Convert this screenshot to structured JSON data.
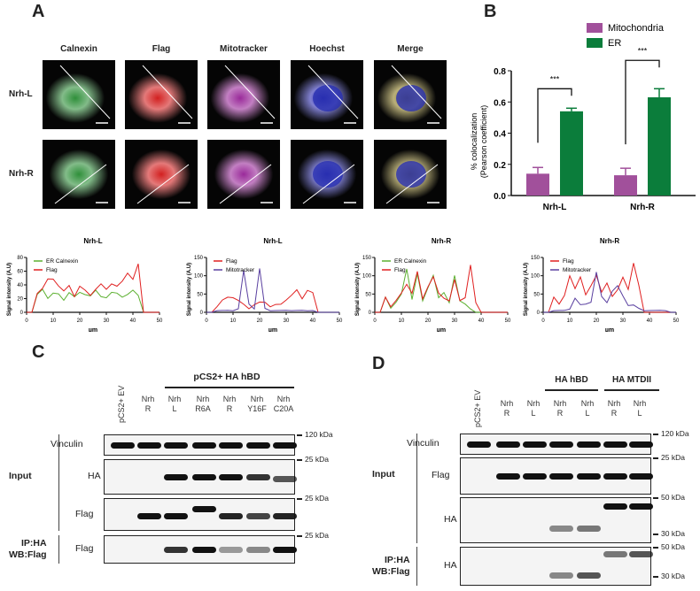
{
  "panels": {
    "a": "A",
    "b": "B",
    "c": "C",
    "d": "D"
  },
  "panel_a": {
    "columns": [
      "Calnexin",
      "Flag",
      "Mitotracker",
      "Hoechst",
      "Merge"
    ],
    "rows": [
      "Nrh-L",
      "Nrh-R"
    ],
    "channel_colors": [
      "#2f8f3a",
      "#d22020",
      "#9a2a9a",
      "#2a2ab0",
      "#8a7a20"
    ]
  },
  "chart_data": [
    {
      "type": "bar",
      "title": "",
      "ylabel": "% colocalization\n(Pearson coefficient)",
      "ylabel_lines": [
        "% colocalization",
        "(Pearson coefficient)"
      ],
      "categories": [
        "Nrh-L",
        "Nrh-R"
      ],
      "ylim": [
        0,
        0.8
      ],
      "yticks": [
        "0.0",
        "0.2",
        "0.4",
        "0.6",
        "0.8"
      ],
      "series": [
        {
          "name": "Mitochondria",
          "color": "#a1509b",
          "values": [
            0.14,
            0.13
          ],
          "errors": [
            0.04,
            0.045
          ]
        },
        {
          "name": "ER",
          "color": "#0b7d3b",
          "values": [
            0.54,
            0.63
          ],
          "errors": [
            0.02,
            0.055
          ]
        }
      ],
      "annotations": [
        "***",
        "***"
      ],
      "legend": "top-right"
    },
    {
      "type": "line",
      "title": "Nrh-L",
      "xlabel": "µm",
      "ylabel": "Signal intensity (A.U)",
      "xlim": [
        0,
        50
      ],
      "ylim": [
        0,
        80
      ],
      "xticks": [
        0,
        10,
        20,
        30,
        40,
        50
      ],
      "yticks": [
        0,
        20,
        40,
        60,
        80
      ],
      "series": [
        {
          "name": "ER Calnexin",
          "color": "#5cb030",
          "values": [
            0,
            0,
            25,
            30,
            22,
            28,
            25,
            20,
            30,
            22,
            26,
            28,
            24,
            30,
            26,
            22,
            28,
            25,
            24,
            26,
            30,
            28,
            0,
            0,
            0,
            0
          ]
        },
        {
          "name": "Flag",
          "color": "#e02020",
          "values": [
            0,
            0,
            30,
            35,
            45,
            55,
            40,
            30,
            35,
            25,
            38,
            30,
            28,
            35,
            40,
            30,
            45,
            38,
            42,
            65,
            50,
            68,
            0,
            0,
            0,
            0
          ]
        }
      ]
    },
    {
      "type": "line",
      "title": "Nrh-L",
      "xlabel": "µm",
      "ylabel": "Signal intensity (A.U)",
      "xlim": [
        0,
        50
      ],
      "ylim": [
        0,
        150
      ],
      "xticks": [
        0,
        10,
        20,
        30,
        40,
        50
      ],
      "yticks": [
        0,
        50,
        100,
        150
      ],
      "series": [
        {
          "name": "Flag",
          "color": "#e02020",
          "values": [
            0,
            0,
            15,
            30,
            45,
            40,
            30,
            25,
            10,
            20,
            25,
            30,
            15,
            20,
            25,
            35,
            45,
            55,
            40,
            60,
            50,
            0,
            0,
            0,
            0,
            0
          ]
        },
        {
          "name": "Mitotracker",
          "color": "#5a40a0",
          "values": [
            0,
            0,
            5,
            5,
            5,
            5,
            10,
            110,
            20,
            10,
            120,
            10,
            5,
            5,
            5,
            5,
            5,
            5,
            5,
            5,
            5,
            0,
            0,
            0,
            0,
            0
          ]
        }
      ]
    },
    {
      "type": "line",
      "title": "Nrh-R",
      "xlabel": "µm",
      "ylabel": "Signal intensity (A.U)",
      "xlim": [
        0,
        50
      ],
      "ylim": [
        0,
        150
      ],
      "xticks": [
        0,
        10,
        20,
        30,
        40,
        50
      ],
      "yticks": [
        0,
        50,
        100,
        150
      ],
      "series": [
        {
          "name": "ER Calnexin",
          "color": "#5cb030",
          "values": [
            0,
            0,
            40,
            10,
            30,
            50,
            110,
            40,
            110,
            30,
            60,
            110,
            40,
            50,
            30,
            105,
            30,
            20,
            10,
            0,
            0,
            0,
            0,
            0,
            0,
            0
          ]
        },
        {
          "name": "Flag",
          "color": "#e02020",
          "values": [
            0,
            0,
            45,
            15,
            30,
            60,
            80,
            50,
            100,
            40,
            70,
            90,
            60,
            40,
            30,
            80,
            35,
            40,
            120,
            30,
            0,
            0,
            0,
            0,
            0,
            0
          ]
        }
      ]
    },
    {
      "type": "line",
      "title": "Nrh-R",
      "xlabel": "µm",
      "ylabel": "Signal intensity (A.U)",
      "xlim": [
        0,
        50
      ],
      "ylim": [
        0,
        150
      ],
      "xticks": [
        0,
        10,
        20,
        30,
        40,
        50
      ],
      "yticks": [
        0,
        50,
        100,
        150
      ],
      "series": [
        {
          "name": "Flag",
          "color": "#e02020",
          "values": [
            0,
            0,
            40,
            20,
            50,
            100,
            60,
            110,
            50,
            70,
            90,
            60,
            80,
            40,
            70,
            100,
            60,
            120,
            80,
            0,
            0,
            0,
            0,
            0,
            0,
            0
          ]
        },
        {
          "name": "Mitotracker",
          "color": "#5a40a0",
          "values": [
            0,
            0,
            5,
            5,
            5,
            10,
            40,
            20,
            20,
            30,
            110,
            40,
            30,
            60,
            70,
            40,
            20,
            20,
            10,
            5,
            5,
            5,
            5,
            5,
            0,
            0
          ]
        }
      ]
    }
  ],
  "panel_c": {
    "group_label": "pCS2+ HA hBD",
    "ev_label": "pCS2+ EV",
    "lanes": [
      [
        "",
        ""
      ],
      [
        "Nrh",
        "R"
      ],
      [
        "Nrh",
        "L"
      ],
      [
        "Nrh",
        "R6A"
      ],
      [
        "Nrh",
        "R"
      ],
      [
        "Nrh",
        "Y16F"
      ],
      [
        "Nrh",
        "C20A"
      ]
    ],
    "rows": [
      {
        "label": "Vinculin",
        "kda": "120 kDa",
        "bands": [
          1,
          1,
          1,
          1,
          1,
          1,
          1
        ]
      },
      {
        "label": "HA",
        "kda": "25 kDa",
        "bands": [
          0,
          0,
          1,
          1,
          1,
          0.8,
          0.6
        ]
      },
      {
        "label": "Flag",
        "kda": "25 kDa",
        "bands": [
          0,
          1,
          1,
          1,
          0.9,
          0.7,
          0.9
        ]
      },
      {
        "label": "Flag",
        "kda": "25 kDa",
        "bands": [
          0,
          0,
          0.8,
          1,
          0.2,
          0.3,
          1
        ]
      }
    ],
    "input_label": "Input",
    "ip_label": [
      "IP:HA",
      "WB:Flag"
    ]
  },
  "panel_d": {
    "ev_label": "pCS2+ EV",
    "groups": [
      "HA hBD",
      "HA MTDII"
    ],
    "lanes": [
      [
        "",
        ""
      ],
      [
        "Nrh",
        "R"
      ],
      [
        "Nrh",
        "L"
      ],
      [
        "Nrh",
        "R"
      ],
      [
        "Nrh",
        "L"
      ],
      [
        "Nrh",
        "R"
      ],
      [
        "Nrh",
        "L"
      ]
    ],
    "rows": [
      {
        "label": "Vinculin",
        "kda": [
          "120 kDa"
        ],
        "bands": [
          1,
          1,
          1,
          1,
          1,
          1,
          1
        ]
      },
      {
        "label": "Flag",
        "kda": [
          "25 kDa"
        ],
        "bands": [
          0,
          1,
          1,
          1,
          1,
          1,
          1
        ]
      },
      {
        "label": "HA",
        "kda": [
          "50 kDa",
          "30 kDa"
        ],
        "bands": [
          0,
          0,
          0,
          0.3,
          0.4,
          1,
          1
        ]
      },
      {
        "label": "HA",
        "kda": [
          "50 kDa",
          "30 kDa"
        ],
        "bands": [
          0,
          0,
          0,
          0.3,
          0.6,
          0.4,
          0.6
        ]
      }
    ],
    "input_label": "Input",
    "ip_label": [
      "IP:HA",
      "WB:Flag"
    ]
  }
}
